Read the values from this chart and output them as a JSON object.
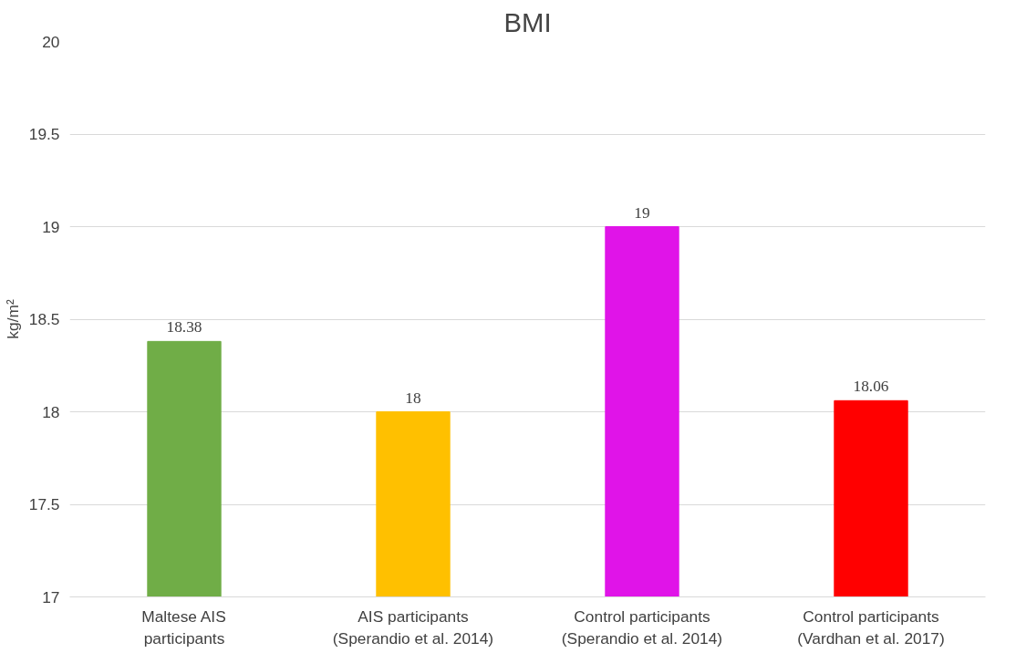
{
  "chart_data": {
    "type": "bar",
    "title": "BMI",
    "ylabel": "kg/m²",
    "categories": [
      "Maltese AIS\nparticipants",
      "AIS participants\n(Sperandio et al. 2014)",
      "Control participants\n(Sperandio et al. 2014)",
      "Control participants\n(Vardhan et al. 2017)"
    ],
    "values": [
      18.38,
      18,
      19,
      18.06
    ],
    "colors": [
      "#70ad47",
      "#ffc000",
      "#e014e8",
      "#ff0000"
    ],
    "ylim": [
      17,
      20
    ],
    "yticks": [
      17,
      17.5,
      18,
      18.5,
      19,
      19.5,
      20
    ],
    "grid": "y",
    "data_labels": true
  }
}
